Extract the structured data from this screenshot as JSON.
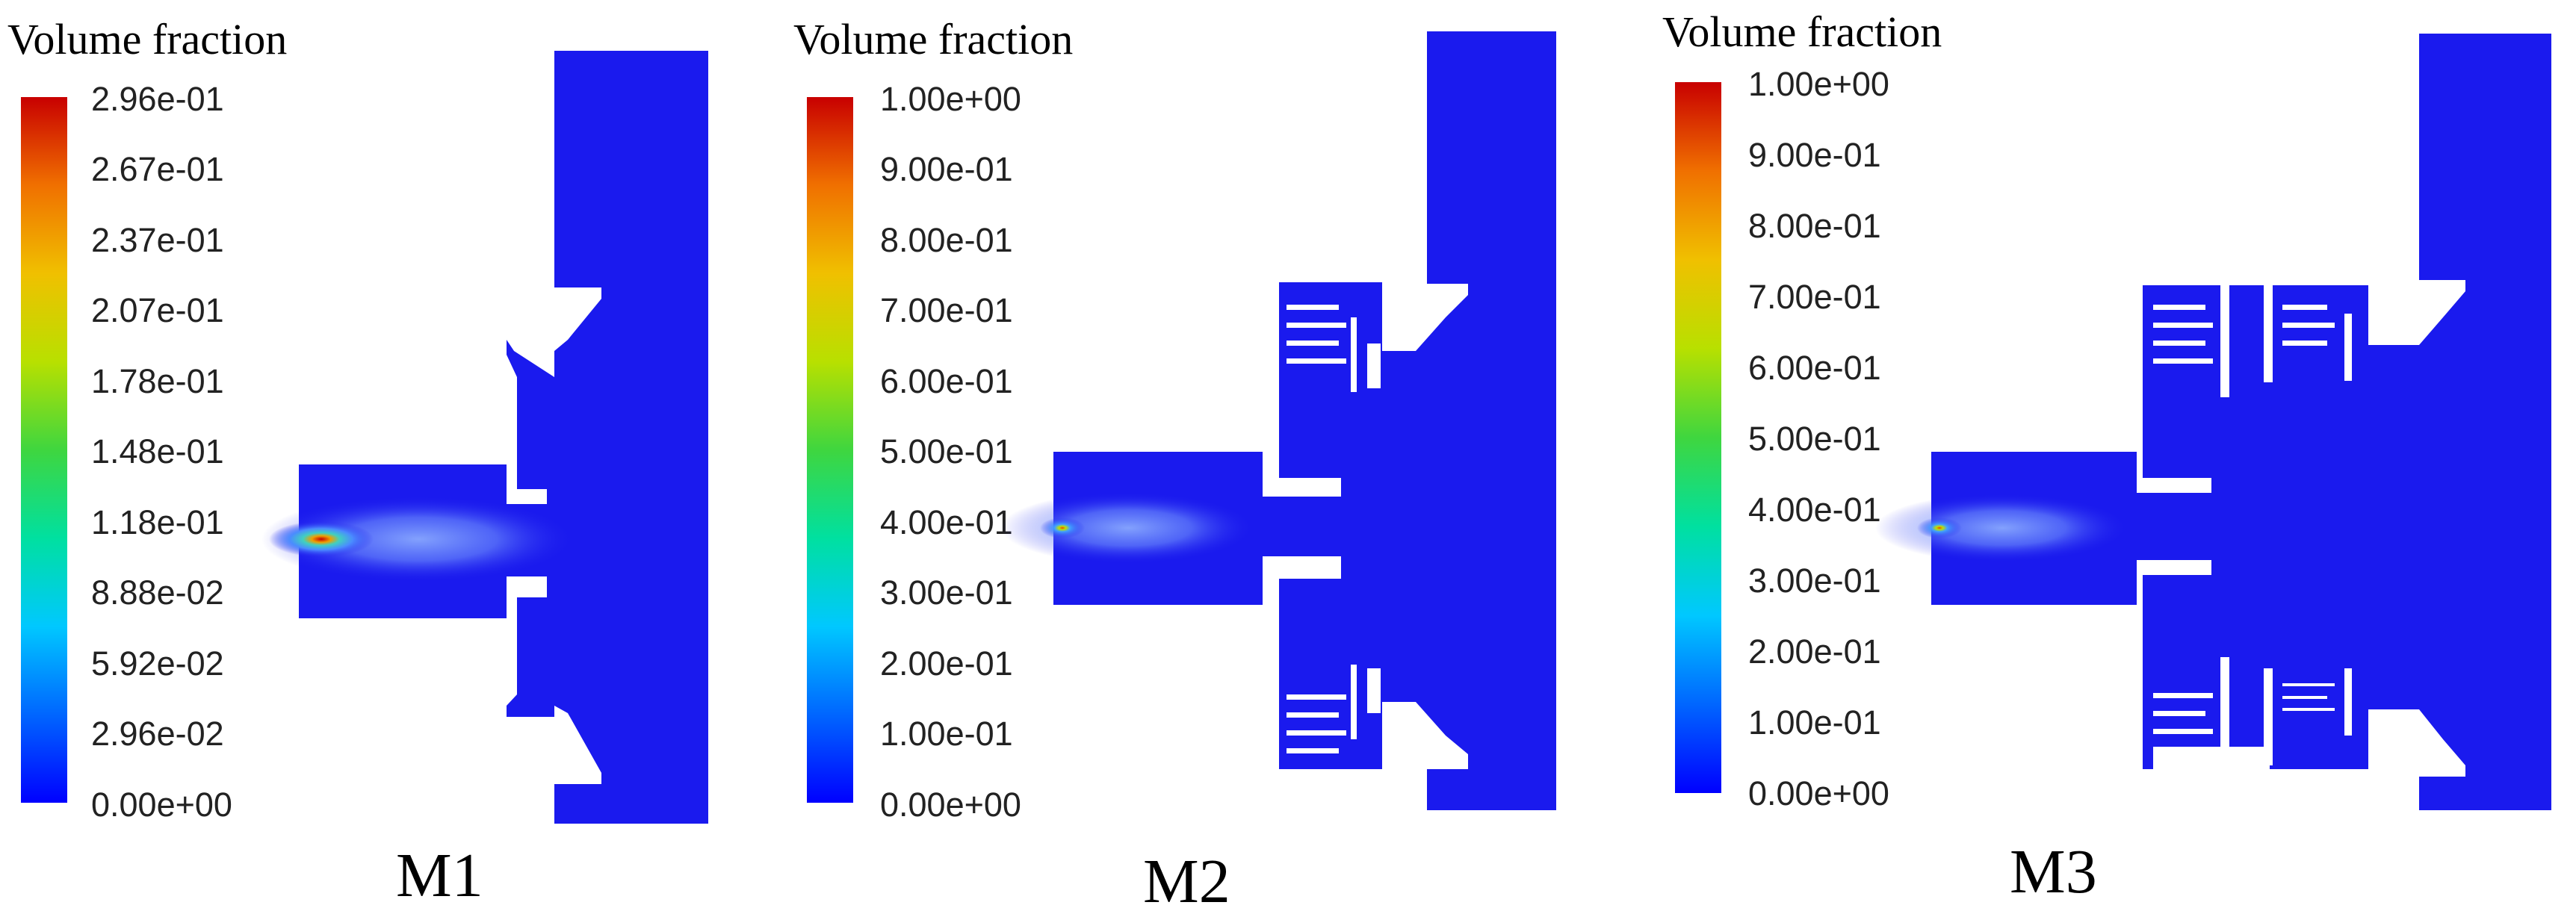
{
  "colormap": [
    "#0000ff",
    "#0066ff",
    "#00c8ff",
    "#00e0a0",
    "#3fd63f",
    "#b8e000",
    "#f0c000",
    "#f07000",
    "#c80000"
  ],
  "panels": [
    {
      "label": "M1",
      "legend": {
        "title": "Volume fraction",
        "ticks": [
          "2.96e-01",
          "2.67e-01",
          "2.37e-01",
          "2.07e-01",
          "1.78e-01",
          "1.48e-01",
          "1.18e-01",
          "8.88e-02",
          "5.92e-02",
          "2.96e-02",
          "0.00e+00"
        ]
      },
      "geometry": {
        "region_color": "#1a1aee"
      }
    },
    {
      "label": "M2",
      "legend": {
        "title": "Volume fraction",
        "ticks": [
          "1.00e+00",
          "9.00e-01",
          "8.00e-01",
          "7.00e-01",
          "6.00e-01",
          "5.00e-01",
          "4.00e-01",
          "3.00e-01",
          "2.00e-01",
          "1.00e-01",
          "0.00e+00"
        ]
      },
      "geometry": {
        "region_color": "#1a1aee"
      }
    },
    {
      "label": "M3",
      "legend": {
        "title": "Volume fraction",
        "ticks": [
          "1.00e+00",
          "9.00e-01",
          "8.00e-01",
          "7.00e-01",
          "6.00e-01",
          "5.00e-01",
          "4.00e-01",
          "3.00e-01",
          "2.00e-01",
          "1.00e-01",
          "0.00e+00"
        ]
      },
      "geometry": {
        "region_color": "#1a1aee"
      }
    }
  ]
}
